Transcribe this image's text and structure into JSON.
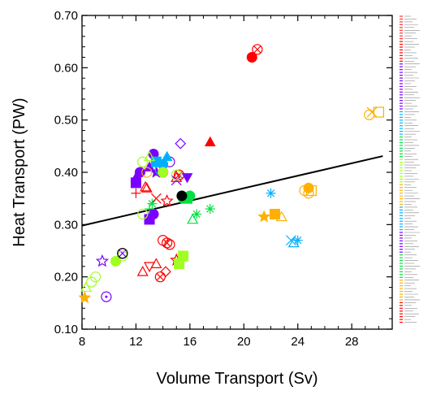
{
  "chart_data": {
    "type": "scatter",
    "title": "",
    "xlabel": "Volume Transport (Sv)",
    "ylabel": "Heat Transport (PW)",
    "xlim": [
      8,
      31
    ],
    "ylim": [
      0.1,
      0.7
    ],
    "x_ticks": [
      "8",
      "12",
      "16",
      "20",
      "24",
      "28"
    ],
    "y_ticks": [
      "0.10",
      "0.20",
      "0.30",
      "0.40",
      "0.50",
      "0.60",
      "0.70"
    ],
    "grid": false,
    "legend": "right (color bar of tiny ensemble-member labels, illegible)",
    "regression_line": {
      "x": [
        8,
        30.3
      ],
      "y": [
        0.298,
        0.431
      ],
      "color": "#000000"
    },
    "series": [
      {
        "color": "#ff0000",
        "points": [
          {
            "x": 20.6,
            "y": 0.62,
            "m": "filled-circle"
          },
          {
            "x": 21.0,
            "y": 0.635,
            "m": "circle-x"
          },
          {
            "x": 17.5,
            "y": 0.458,
            "m": "filled-triangle"
          },
          {
            "x": 12.0,
            "y": 0.36,
            "m": "plus"
          },
          {
            "x": 12.8,
            "y": 0.37,
            "m": "triangle"
          },
          {
            "x": 13.5,
            "y": 0.35,
            "m": "x"
          },
          {
            "x": 14.3,
            "y": 0.345,
            "m": "star"
          },
          {
            "x": 14.0,
            "y": 0.27,
            "m": "circle"
          },
          {
            "x": 14.3,
            "y": 0.265,
            "m": "circle-x"
          },
          {
            "x": 14.5,
            "y": 0.262,
            "m": "circle"
          },
          {
            "x": 13.0,
            "y": 0.22,
            "m": "down-triangle"
          },
          {
            "x": 13.5,
            "y": 0.225,
            "m": "triangle"
          },
          {
            "x": 12.5,
            "y": 0.21,
            "m": "triangle"
          },
          {
            "x": 13.8,
            "y": 0.2,
            "m": "circle-x"
          },
          {
            "x": 14.2,
            "y": 0.21,
            "m": "diamond"
          },
          {
            "x": 15.0,
            "y": 0.232,
            "m": "star"
          },
          {
            "x": 14.0,
            "y": 0.4,
            "m": "circle"
          },
          {
            "x": 15.0,
            "y": 0.39,
            "m": "triangle"
          },
          {
            "x": 15.2,
            "y": 0.395,
            "m": "circle-x"
          },
          {
            "x": 12.7,
            "y": 0.372,
            "m": "triangle"
          }
        ]
      },
      {
        "color": "#7a00ff",
        "points": [
          {
            "x": 12.0,
            "y": 0.38,
            "m": "filled-square"
          },
          {
            "x": 12.0,
            "y": 0.39,
            "m": "filled-triangle"
          },
          {
            "x": 12.3,
            "y": 0.4,
            "m": "filled-circle"
          },
          {
            "x": 13.0,
            "y": 0.41,
            "m": "filled-triangle"
          },
          {
            "x": 13.5,
            "y": 0.4,
            "m": "filled-star"
          },
          {
            "x": 14.5,
            "y": 0.42,
            "m": "circle"
          },
          {
            "x": 15.3,
            "y": 0.455,
            "m": "diamond"
          },
          {
            "x": 15.8,
            "y": 0.39,
            "m": "filled-down-triangle"
          },
          {
            "x": 15.0,
            "y": 0.385,
            "m": "x"
          },
          {
            "x": 13.3,
            "y": 0.435,
            "m": "filled-circle"
          },
          {
            "x": 13.0,
            "y": 0.31,
            "m": "filled-square"
          },
          {
            "x": 13.3,
            "y": 0.32,
            "m": "filled-circle"
          },
          {
            "x": 9.5,
            "y": 0.23,
            "m": "star"
          },
          {
            "x": 11.0,
            "y": 0.245,
            "m": "circle-x"
          },
          {
            "x": 9.8,
            "y": 0.162,
            "m": "circle-dot"
          }
        ]
      },
      {
        "color": "#00b0ff",
        "points": [
          {
            "x": 13.5,
            "y": 0.42,
            "m": "filled-square"
          },
          {
            "x": 14.0,
            "y": 0.415,
            "m": "filled-circle"
          },
          {
            "x": 14.3,
            "y": 0.43,
            "m": "filled-triangle"
          },
          {
            "x": 13.8,
            "y": 0.405,
            "m": "circle"
          },
          {
            "x": 22.0,
            "y": 0.36,
            "m": "asterisk"
          },
          {
            "x": 23.5,
            "y": 0.27,
            "m": "x"
          },
          {
            "x": 23.7,
            "y": 0.265,
            "m": "triangle"
          },
          {
            "x": 24.0,
            "y": 0.27,
            "m": "asterisk"
          }
        ]
      },
      {
        "color": "#00e040",
        "points": [
          {
            "x": 15.5,
            "y": 0.35,
            "m": "filled-circle"
          },
          {
            "x": 15.8,
            "y": 0.35,
            "m": "filled-square"
          },
          {
            "x": 16.0,
            "y": 0.355,
            "m": "filled-circle"
          },
          {
            "x": 17.5,
            "y": 0.33,
            "m": "asterisk"
          },
          {
            "x": 16.5,
            "y": 0.32,
            "m": "asterisk"
          },
          {
            "x": 16.2,
            "y": 0.31,
            "m": "triangle"
          },
          {
            "x": 13.2,
            "y": 0.34,
            "m": "asterisk"
          },
          {
            "x": 13.0,
            "y": 0.33,
            "m": "plus"
          }
        ]
      },
      {
        "color": "#a0ff20",
        "points": [
          {
            "x": 12.5,
            "y": 0.42,
            "m": "circle"
          },
          {
            "x": 13.0,
            "y": 0.43,
            "m": "triangle"
          },
          {
            "x": 14.0,
            "y": 0.4,
            "m": "filled-circle"
          },
          {
            "x": 15.0,
            "y": 0.395,
            "m": "circle"
          },
          {
            "x": 15.5,
            "y": 0.24,
            "m": "filled-square"
          },
          {
            "x": 15.2,
            "y": 0.225,
            "m": "filled-square"
          },
          {
            "x": 10.5,
            "y": 0.23,
            "m": "filled-circle"
          },
          {
            "x": 11.0,
            "y": 0.24,
            "m": "circle"
          },
          {
            "x": 9.0,
            "y": 0.2,
            "m": "circle"
          },
          {
            "x": 8.7,
            "y": 0.19,
            "m": "circle"
          },
          {
            "x": 8.3,
            "y": 0.18,
            "m": "triangle"
          },
          {
            "x": 12.5,
            "y": 0.32,
            "m": "circle"
          }
        ]
      },
      {
        "color": "#ffb000",
        "points": [
          {
            "x": 29.3,
            "y": 0.51,
            "m": "circle"
          },
          {
            "x": 29.5,
            "y": 0.515,
            "m": "x"
          },
          {
            "x": 30.0,
            "y": 0.515,
            "m": "square"
          },
          {
            "x": 24.8,
            "y": 0.37,
            "m": "filled-circle"
          },
          {
            "x": 25.0,
            "y": 0.365,
            "m": "square"
          },
          {
            "x": 24.5,
            "y": 0.365,
            "m": "circle"
          },
          {
            "x": 24.8,
            "y": 0.36,
            "m": "circle"
          },
          {
            "x": 22.3,
            "y": 0.32,
            "m": "filled-square"
          },
          {
            "x": 22.8,
            "y": 0.315,
            "m": "triangle"
          },
          {
            "x": 21.5,
            "y": 0.315,
            "m": "filled-star"
          },
          {
            "x": 8.2,
            "y": 0.16,
            "m": "filled-star"
          },
          {
            "x": 12.8,
            "y": 0.4,
            "m": "circle"
          }
        ]
      },
      {
        "color": "#000000",
        "points": [
          {
            "x": 15.4,
            "y": 0.355,
            "m": "filled-circle"
          },
          {
            "x": 11.0,
            "y": 0.245,
            "m": "circle"
          }
        ]
      }
    ]
  }
}
